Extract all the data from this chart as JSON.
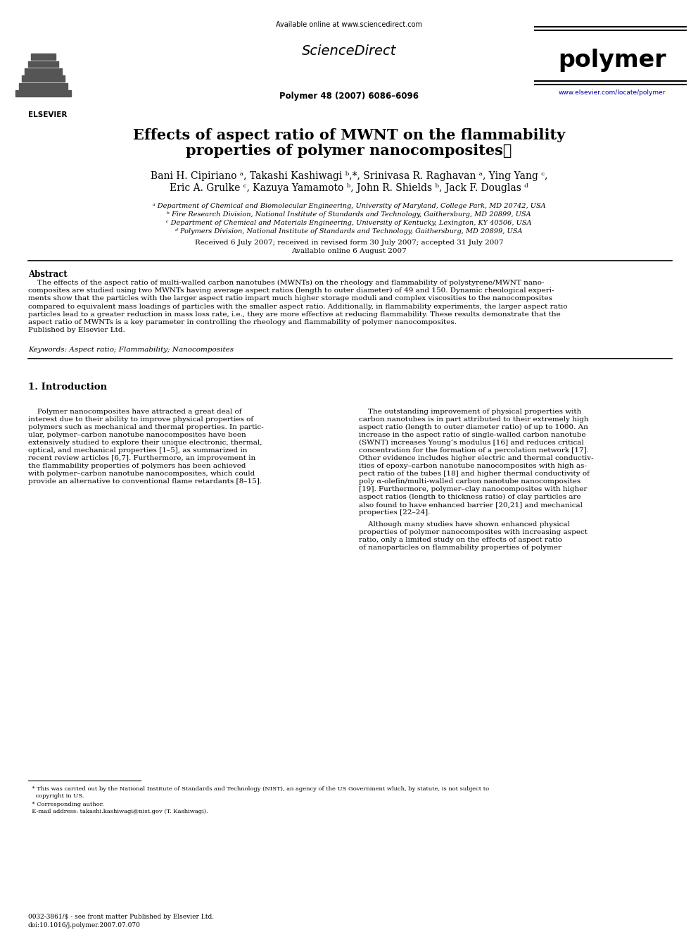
{
  "background_color": "#ffffff",
  "title_line1": "Effects of aspect ratio of MWNT on the flammability",
  "title_line2": "properties of polymer nanocomposites★",
  "authors_line1": "Bani H. Cipiriano ᵃ, Takashi Kashiwagi ᵇ,*, Srinivasa R. Raghavan ᵃ, Ying Yang ᶜ,",
  "authors_line2": "Eric A. Grulke ᶜ, Kazuya Yamamoto ᵇ, John R. Shields ᵇ, Jack F. Douglas ᵈ",
  "affil_a": "ᵃ Department of Chemical and Biomolecular Engineering, University of Maryland, College Park, MD 20742, USA",
  "affil_b": "ᵇ Fire Research Division, National Institute of Standards and Technology, Gaithersburg, MD 20899, USA",
  "affil_c": "ᶜ Department of Chemical and Materials Engineering, University of Kentucky, Lexington, KY 40506, USA",
  "affil_d": "ᵈ Polymers Division, National Institute of Standards and Technology, Gaithersburg, MD 20899, USA",
  "received": "Received 6 July 2007; received in revised form 30 July 2007; accepted 31 July 2007",
  "available": "Available online 6 August 2007",
  "header_online": "Available online at www.sciencedirect.com",
  "journal_ref": "Polymer 48 (2007) 6086–6096",
  "journal_name": "polymer",
  "website": "www.elsevier.com/locate/polymer",
  "abstract_title": "Abstract",
  "keywords": "Keywords: Aspect ratio; Flammability; Nanocomposites",
  "section1_title": "1. Introduction",
  "footnote_line": "—————————————————",
  "footnote1": "  * This was carried out by the National Institute of Standards and Technology (NIST), an agency of the US Government which, by statute, is not subject to",
  "footnote1b": "    copyright in US.",
  "footnote2": "  * Corresponding author.",
  "footnote3": "  E-mail address: takashi.kashiwagi@nist.gov (T. Kashiwagi).",
  "footer1": "0032-3861/$ - see front matter Published by Elsevier Ltd.",
  "footer2": "doi:10.1016/j.polymer.2007.07.070",
  "abstract_lines": [
    "    The effects of the aspect ratio of multi-walled carbon nanotubes (MWNTs) on the rheology and flammability of polystyrene/MWNT nano-",
    "composites are studied using two MWNTs having average aspect ratios (length to outer diameter) of 49 and 150. Dynamic rheological experi-",
    "ments show that the particles with the larger aspect ratio impart much higher storage moduli and complex viscosities to the nanocomposites",
    "compared to equivalent mass loadings of particles with the smaller aspect ratio. Additionally, in flammability experiments, the larger aspect ratio",
    "particles lead to a greater reduction in mass loss rate, i.e., they are more effective at reducing flammability. These results demonstrate that the",
    "aspect ratio of MWNTs is a key parameter in controlling the rheology and flammability of polymer nanocomposites.",
    "Published by Elsevier Ltd."
  ],
  "col1_lines": [
    "    Polymer nanocomposites have attracted a great deal of",
    "interest due to their ability to improve physical properties of",
    "polymers such as mechanical and thermal properties. In partic-",
    "ular, polymer–carbon nanotube nanocomposites have been",
    "extensively studied to explore their unique electronic, thermal,",
    "optical, and mechanical properties [1–5], as summarized in",
    "recent review articles [6,7]. Furthermore, an improvement in",
    "the flammability properties of polymers has been achieved",
    "with polymer–carbon nanotube nanocomposites, which could",
    "provide an alternative to conventional flame retardants [8–15]."
  ],
  "col2_lines": [
    "    The outstanding improvement of physical properties with",
    "carbon nanotubes is in part attributed to their extremely high",
    "aspect ratio (length to outer diameter ratio) of up to 1000. An",
    "increase in the aspect ratio of single-walled carbon nanotube",
    "(SWNT) increases Young’s modulus [16] and reduces critical",
    "concentration for the formation of a percolation network [17].",
    "Other evidence includes higher electric and thermal conductiv-",
    "ities of epoxy–carbon nanotube nanocomposites with high as-",
    "pect ratio of the tubes [18] and higher thermal conductivity of",
    "poly α-olefin/multi-walled carbon nanotube nanocomposites",
    "[19]. Furthermore, polymer–clay nanocomposites with higher",
    "aspect ratios (length to thickness ratio) of clay particles are",
    "also found to have enhanced barrier [20,21] and mechanical",
    "properties [22–24]."
  ],
  "col2_lines2": [
    "    Although many studies have shown enhanced physical",
    "properties of polymer nanocomposites with increasing aspect",
    "ratio, only a limited study on the effects of aspect ratio",
    "of nanoparticles on flammability properties of polymer"
  ]
}
